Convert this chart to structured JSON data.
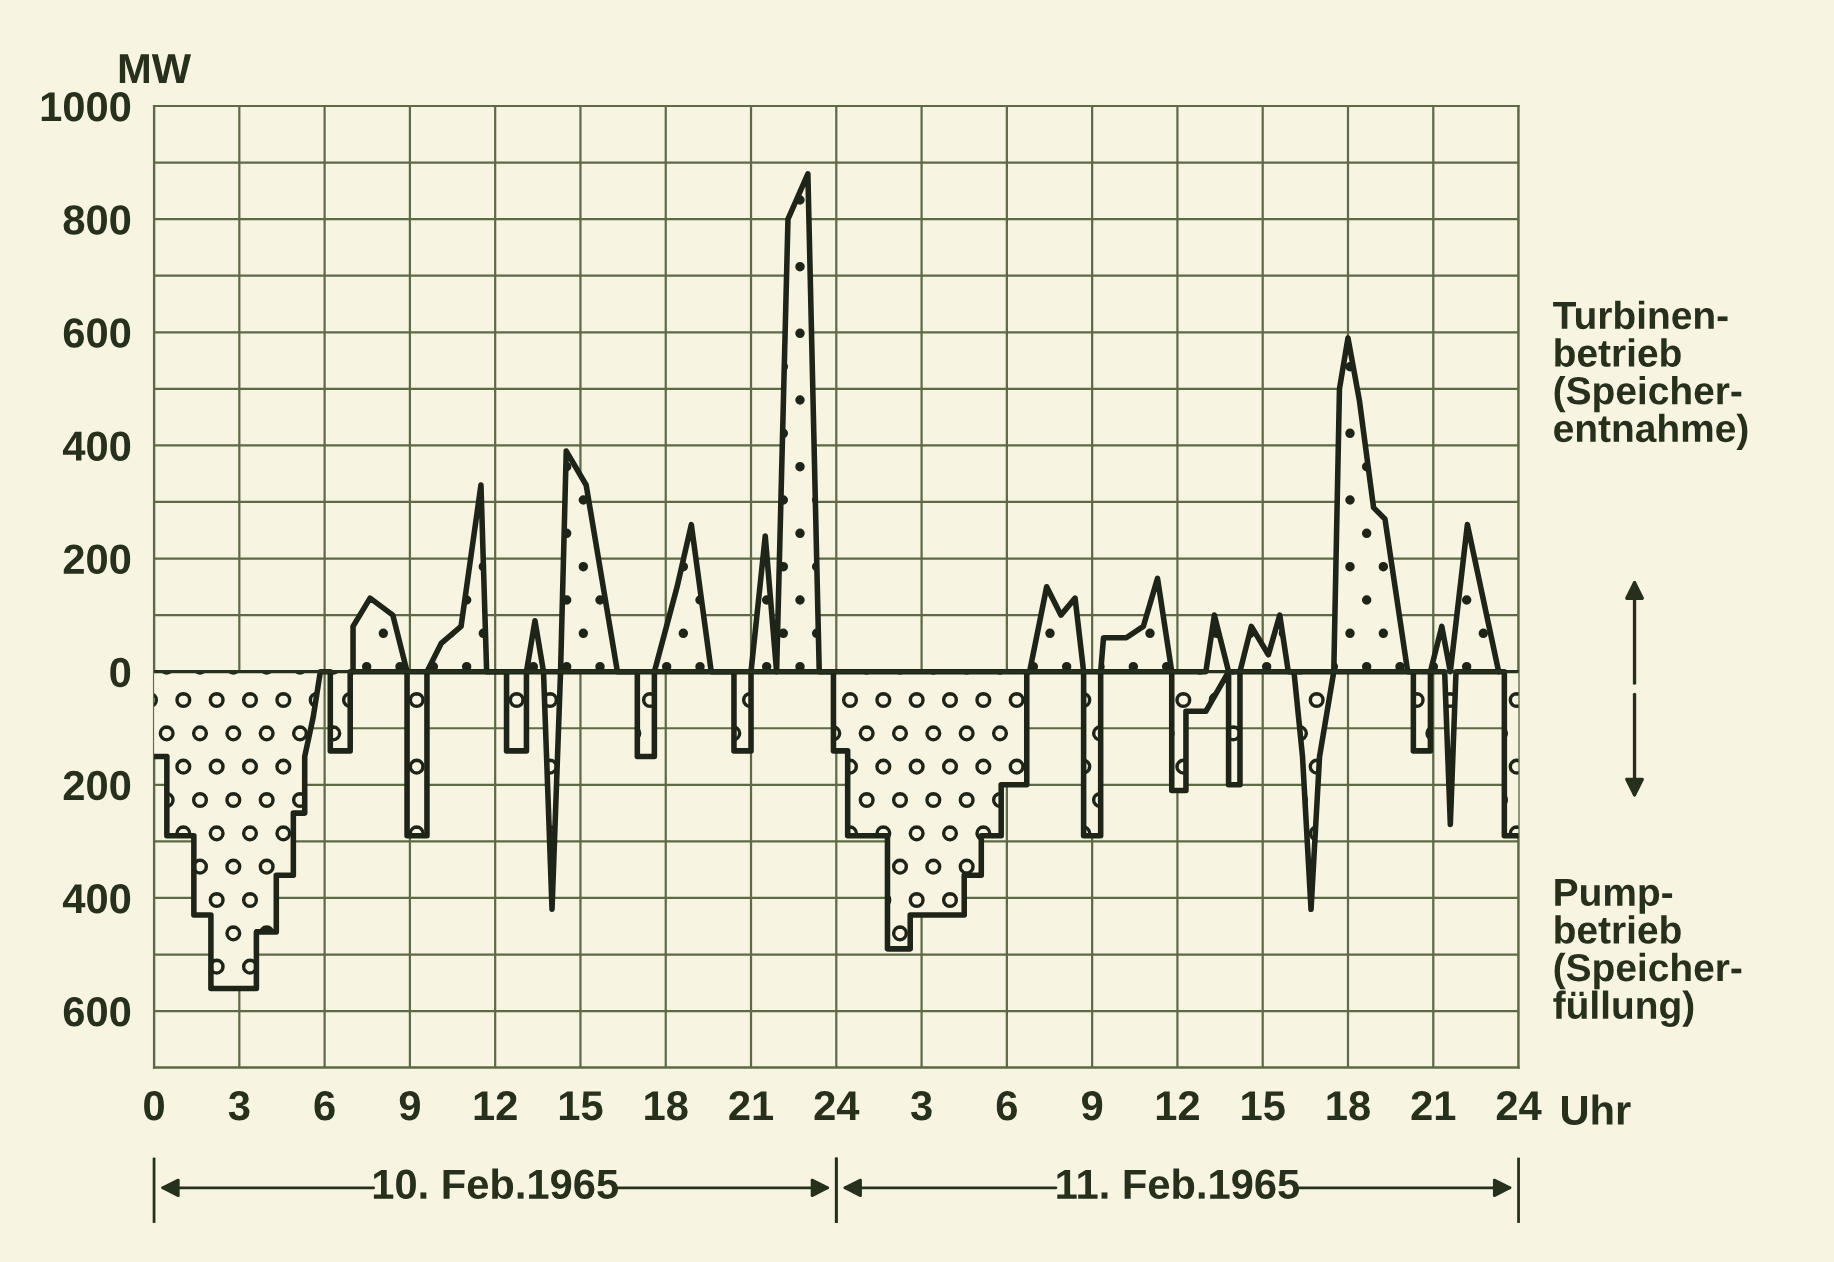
{
  "chart_data": {
    "type": "area",
    "ylabel": "MW",
    "xlabel": "Uhr",
    "xlim": [
      "1965-02-10T00:00",
      "1965-02-12T00:00"
    ],
    "ylim": [
      -700,
      1000
    ],
    "xticks": [
      {
        "value": "1965-02-10T00:00",
        "label": "0"
      },
      {
        "value": "1965-02-10T03:00",
        "label": "3"
      },
      {
        "value": "1965-02-10T06:00",
        "label": "6"
      },
      {
        "value": "1965-02-10T09:00",
        "label": "9"
      },
      {
        "value": "1965-02-10T12:00",
        "label": "12"
      },
      {
        "value": "1965-02-10T15:00",
        "label": "15"
      },
      {
        "value": "1965-02-10T18:00",
        "label": "18"
      },
      {
        "value": "1965-02-10T21:00",
        "label": "21"
      },
      {
        "value": "1965-02-11T00:00",
        "label": "24"
      },
      {
        "value": "1965-02-11T03:00",
        "label": "3"
      },
      {
        "value": "1965-02-11T06:00",
        "label": "6"
      },
      {
        "value": "1965-02-11T09:00",
        "label": "9"
      },
      {
        "value": "1965-02-11T12:00",
        "label": "12"
      },
      {
        "value": "1965-02-11T15:00",
        "label": "15"
      },
      {
        "value": "1965-02-11T18:00",
        "label": "18"
      },
      {
        "value": "1965-02-11T21:00",
        "label": "21"
      },
      {
        "value": "1965-02-12T00:00",
        "label": "24"
      }
    ],
    "yticks": [
      {
        "value": -700,
        "label": null
      },
      {
        "value": -600,
        "label": "600"
      },
      {
        "value": -500,
        "label": null
      },
      {
        "value": -400,
        "label": "400"
      },
      {
        "value": -300,
        "label": null
      },
      {
        "value": -200,
        "label": "200"
      },
      {
        "value": -100,
        "label": null
      },
      0,
      {
        "value": 100,
        "label": null
      },
      200,
      {
        "value": 300,
        "label": null
      },
      400,
      {
        "value": 500,
        "label": null
      },
      600,
      {
        "value": 700,
        "label": null
      },
      800,
      {
        "value": 900,
        "label": null
      },
      1000
    ],
    "grid": true,
    "series": [
      {
        "name": "Turbinen-\nbetrieb\n(Speicher-\nentnahme)",
        "color": "#1e2418",
        "x": [
          "1965-02-10T07:00",
          "1965-02-10T07:00",
          "1965-02-10T07:36",
          "1965-02-10T08:24",
          "1965-02-10T08:54",
          "1965-02-10T09:36",
          "1965-02-10T10:06",
          "1965-02-10T10:48",
          "1965-02-10T11:30",
          "1965-02-10T11:42",
          "1965-02-10T13:06",
          "1965-02-10T13:24",
          "1965-02-10T13:42",
          "1965-02-10T14:18",
          "1965-02-10T14:30",
          "1965-02-10T15:12",
          "1965-02-10T16:18",
          "1965-02-10T17:36",
          "1965-02-10T18:24",
          "1965-02-10T18:54",
          "1965-02-10T19:36",
          "1965-02-10T21:00",
          "1965-02-10T21:30",
          "1965-02-10T21:54",
          "1965-02-10T22:18",
          "1965-02-10T23:00",
          "1965-02-10T23:24",
          "1965-02-11T06:48",
          "1965-02-11T07:24",
          "1965-02-11T07:54",
          "1965-02-11T08:24",
          "1965-02-11T08:42",
          "1965-02-11T09:18",
          "1965-02-11T09:24",
          "1965-02-11T10:12",
          "1965-02-11T10:48",
          "1965-02-11T11:18",
          "1965-02-11T11:48",
          "1965-02-11T13:00",
          "1965-02-11T13:18",
          "1965-02-11T13:48",
          "1965-02-11T14:12",
          "1965-02-11T14:36",
          "1965-02-11T15:12",
          "1965-02-11T15:36",
          "1965-02-11T15:54",
          "1965-02-11T17:30",
          "1965-02-11T17:42",
          "1965-02-11T18:00",
          "1965-02-11T18:24",
          "1965-02-11T18:54",
          "1965-02-11T19:18",
          "1965-02-11T20:06",
          "1965-02-11T20:54",
          "1965-02-11T21:18",
          "1965-02-11T21:36",
          "1965-02-11T22:12",
          "1965-02-11T23:18"
        ],
        "values": [
          0,
          80,
          130,
          100,
          0,
          0,
          50,
          80,
          330,
          0,
          0,
          90,
          0,
          0,
          390,
          330,
          0,
          0,
          150,
          260,
          0,
          0,
          240,
          0,
          800,
          880,
          0,
          0,
          150,
          100,
          130,
          0,
          0,
          60,
          60,
          80,
          165,
          0,
          0,
          100,
          0,
          0,
          80,
          30,
          100,
          0,
          0,
          500,
          590,
          480,
          290,
          270,
          0,
          0,
          80,
          0,
          260,
          0
        ]
      },
      {
        "name": "Pump-\nbetrieb\n(Speicher-\nfüllung)",
        "color": "#1e2418",
        "x": [
          "1965-02-10T00:00",
          "1965-02-10T00:27",
          "1965-02-10T00:27",
          "1965-02-10T01:24",
          "1965-02-10T01:24",
          "1965-02-10T02:00",
          "1965-02-10T02:00",
          "1965-02-10T03:36",
          "1965-02-10T03:36",
          "1965-02-10T04:18",
          "1965-02-10T04:18",
          "1965-02-10T04:54",
          "1965-02-10T04:54",
          "1965-02-10T05:18",
          "1965-02-10T05:18",
          "1965-02-10T05:36",
          "1965-02-10T05:51",
          "1965-02-10T06:12",
          "1965-02-10T06:12",
          "1965-02-10T06:54",
          "1965-02-10T06:54",
          "1965-02-10T08:54",
          "1965-02-10T08:54",
          "1965-02-10T09:36",
          "1965-02-10T09:36",
          "1965-02-10T12:24",
          "1965-02-10T12:24",
          "1965-02-10T13:06",
          "1965-02-10T13:06",
          "1965-02-10T13:42",
          "1965-02-10T14:00",
          "1965-02-10T14:18",
          "1965-02-10T17:00",
          "1965-02-10T17:00",
          "1965-02-10T17:36",
          "1965-02-10T17:36",
          "1965-02-10T20:24",
          "1965-02-10T20:24",
          "1965-02-10T21:00",
          "1965-02-10T21:00",
          "1965-02-10T23:54",
          "1965-02-10T23:54",
          "1965-02-11T00:24",
          "1965-02-11T00:24",
          "1965-02-11T01:48",
          "1965-02-11T01:48",
          "1965-02-11T02:36",
          "1965-02-11T02:36",
          "1965-02-11T04:30",
          "1965-02-11T04:30",
          "1965-02-11T05:06",
          "1965-02-11T05:06",
          "1965-02-11T05:48",
          "1965-02-11T05:48",
          "1965-02-11T06:42",
          "1965-02-11T06:42",
          "1965-02-11T08:42",
          "1965-02-11T08:42",
          "1965-02-11T09:18",
          "1965-02-11T09:18",
          "1965-02-11T11:48",
          "1965-02-11T11:48",
          "1965-02-11T12:18",
          "1965-02-11T12:18",
          "1965-02-11T13:00",
          "1965-02-11T13:48",
          "1965-02-11T13:48",
          "1965-02-11T14:12",
          "1965-02-11T14:12",
          "1965-02-11T16:06",
          "1965-02-11T16:24",
          "1965-02-11T16:42",
          "1965-02-11T17:00",
          "1965-02-11T17:30",
          "1965-02-11T20:18",
          "1965-02-11T20:18",
          "1965-02-11T20:54",
          "1965-02-11T20:54",
          "1965-02-11T21:24",
          "1965-02-11T21:36",
          "1965-02-11T21:48",
          "1965-02-11T23:30",
          "1965-02-11T23:30",
          "1965-02-12T00:00"
        ],
        "values": [
          -150,
          -150,
          -290,
          -290,
          -430,
          -430,
          -560,
          -560,
          -460,
          -460,
          -360,
          -360,
          -250,
          -250,
          -150,
          -80,
          0,
          0,
          -140,
          -140,
          0,
          0,
          -290,
          -290,
          0,
          0,
          -140,
          -140,
          0,
          0,
          -420,
          0,
          0,
          -150,
          -150,
          0,
          0,
          -140,
          -140,
          0,
          0,
          -140,
          -140,
          -290,
          -290,
          -490,
          -490,
          -430,
          -430,
          -360,
          -360,
          -290,
          -290,
          -200,
          -200,
          0,
          0,
          -290,
          -290,
          0,
          0,
          -210,
          -210,
          -70,
          -70,
          0,
          -200,
          -200,
          0,
          0,
          -150,
          -420,
          -150,
          0,
          0,
          -140,
          -140,
          0,
          0,
          -270,
          0,
          0,
          -290,
          -290
        ]
      }
    ],
    "annotations": [
      "10. Feb.1965",
      "11. Feb.1965"
    ]
  }
}
